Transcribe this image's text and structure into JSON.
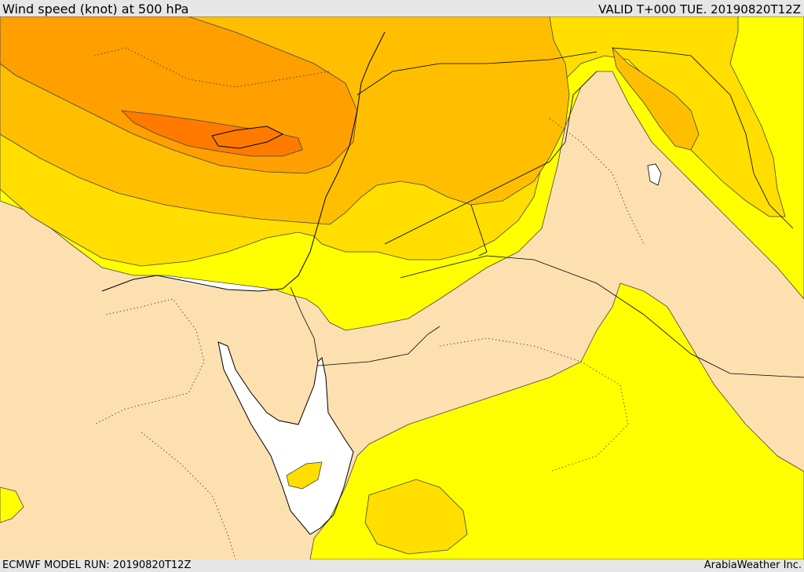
{
  "header": {
    "title": "Wind speed (knot) at 500 hPa",
    "valid": "VALID T+000 TUE. 20190820T12Z"
  },
  "footer": {
    "run": "ECMWF MODEL RUN: 20190820T12Z",
    "credit": "ArabiaWeather Inc."
  },
  "colors": {
    "land_calm": "#fde0b0",
    "water": "#ffffff",
    "band_1": "#ffff00",
    "band_2": "#ffde00",
    "band_3": "#ffbf00",
    "band_4": "#ff9f00",
    "band_5": "#ff7b00",
    "contour": "#444444",
    "coastline": "#000000",
    "border": "#000000"
  }
}
